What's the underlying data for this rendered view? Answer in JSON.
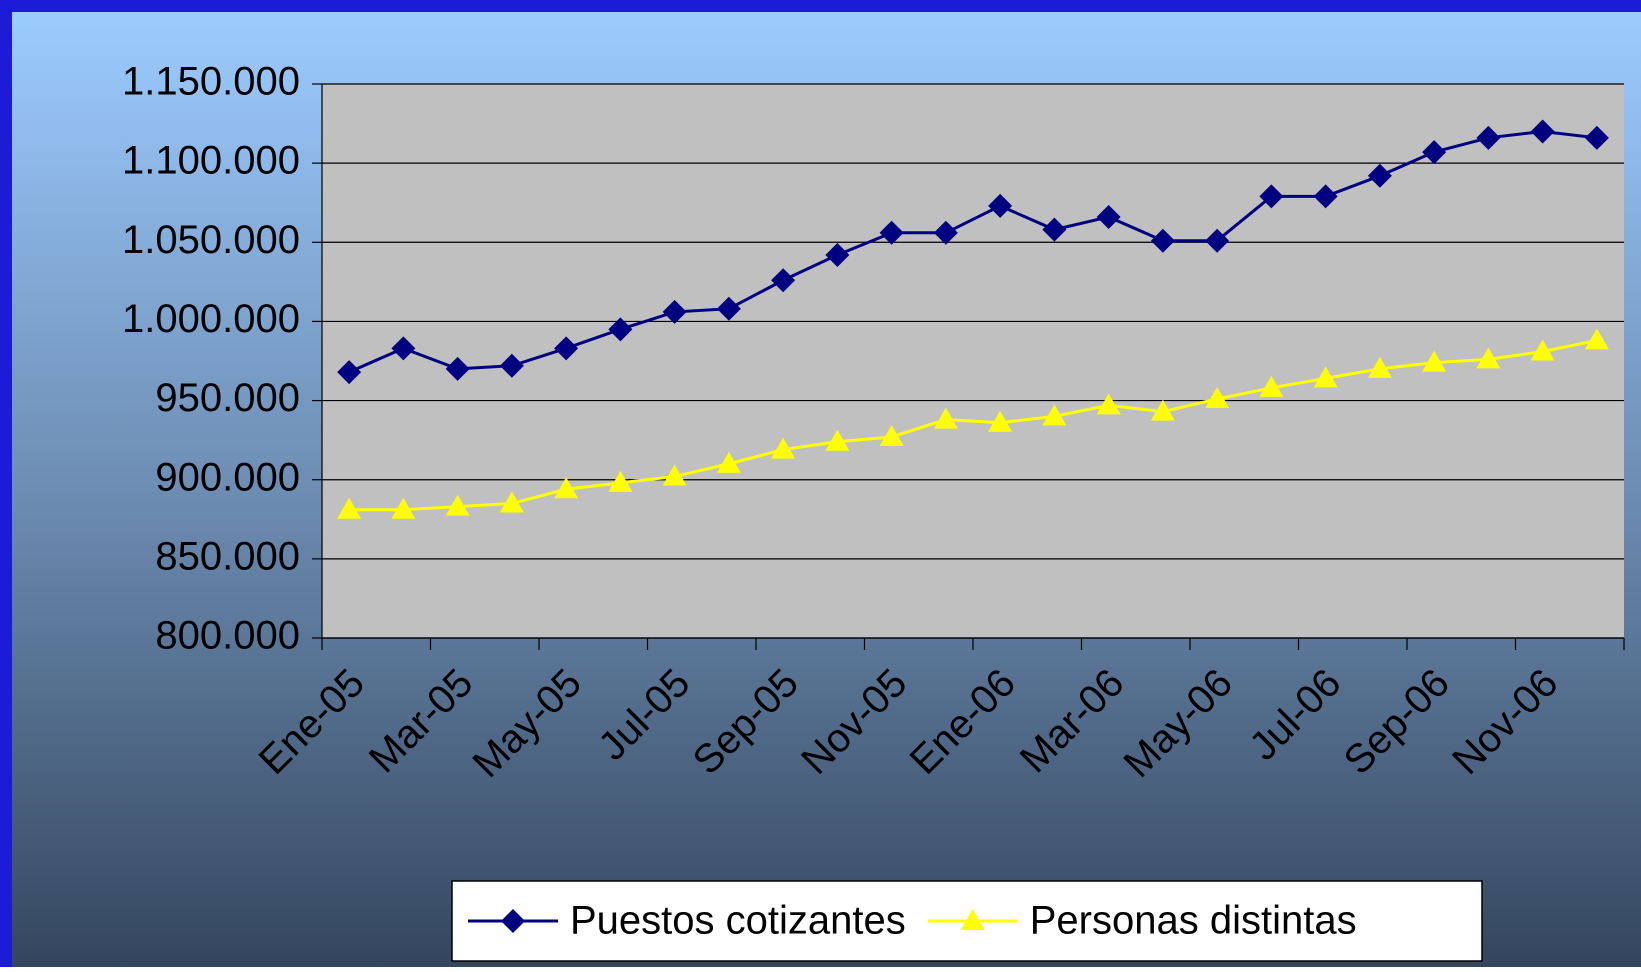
{
  "chart_data": {
    "type": "line",
    "categories": [
      "Ene-05",
      null,
      "Mar-05",
      null,
      "May-05",
      null,
      "Jul-05",
      null,
      "Sep-05",
      null,
      "Nov-05",
      null,
      "Ene-06",
      null,
      "Mar-06",
      null,
      "May-06",
      null,
      "Jul-06",
      null,
      "Sep-06",
      null,
      "Nov-06",
      null
    ],
    "series": [
      {
        "name": "Puestos cotizantes",
        "color": "#000080",
        "marker": "diamond",
        "values": [
          968000,
          983000,
          970000,
          972000,
          983000,
          995000,
          1006000,
          1008000,
          1026000,
          1042000,
          1056000,
          1056000,
          1073000,
          1058000,
          1066000,
          1051000,
          1051000,
          1079000,
          1079000,
          1092000,
          1107000,
          1116000,
          1120000,
          1116000
        ]
      },
      {
        "name": "Personas distintas",
        "color": "#ffff00",
        "marker": "triangle",
        "values": [
          881000,
          881000,
          883000,
          885000,
          894000,
          898000,
          902000,
          910000,
          919000,
          924000,
          927000,
          938000,
          936000,
          940000,
          947000,
          943000,
          951000,
          958000,
          964000,
          970000,
          974000,
          976000,
          981000,
          988000
        ]
      }
    ],
    "ylim": [
      800000,
      1150000
    ],
    "yticks": [
      {
        "value": 800000,
        "label": "800.000"
      },
      {
        "value": 850000,
        "label": "850.000"
      },
      {
        "value": 900000,
        "label": "900.000"
      },
      {
        "value": 950000,
        "label": "950.000"
      },
      {
        "value": 1000000,
        "label": "1.000.000"
      },
      {
        "value": 1050000,
        "label": "1.050.000"
      },
      {
        "value": 1100000,
        "label": "1.100.000"
      },
      {
        "value": 1150000,
        "label": "1.150.000"
      }
    ],
    "grid": true,
    "legend": "bottom"
  }
}
